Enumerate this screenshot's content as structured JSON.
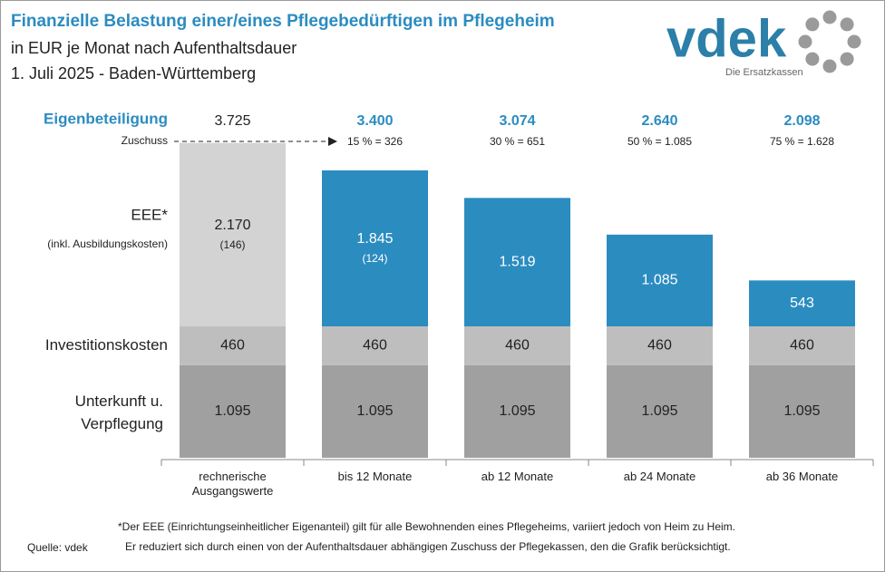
{
  "title": "Finanzielle Belastung einer/eines Pflegebedürftigen im Pflegeheim",
  "subtitle": [
    "in EUR je Monat nach Aufenthaltsdauer",
    "1. Juli 2025 - Baden-Württemberg"
  ],
  "logo": {
    "text": "vdek",
    "tagline": "Die Ersatzkassen"
  },
  "chart_data": {
    "type": "bar",
    "stacked": true,
    "categories": [
      "rechnerische Ausgangswerte",
      "bis 12 Monate",
      "ab 12 Monate",
      "ab 24 Monate",
      "ab 36 Monate"
    ],
    "series": [
      {
        "name": "Unterkunft u. Verpflegung",
        "color": "#a0a0a0",
        "values": [
          1095,
          1095,
          1095,
          1095,
          1095
        ],
        "value_labels": [
          "1.095",
          "1.095",
          "1.095",
          "1.095",
          "1.095"
        ]
      },
      {
        "name": "Investitionskosten",
        "color": "#bebebe",
        "values": [
          460,
          460,
          460,
          460,
          460
        ]
      },
      {
        "name": "EEE*",
        "color": "#2b8cc0",
        "colors": [
          "#d3d3d3",
          "#2b8cc0",
          "#2b8cc0",
          "#2b8cc0",
          "#2b8cc0"
        ],
        "values": [
          2170,
          1845,
          1519,
          1085,
          543
        ],
        "value_labels": [
          "2.170",
          "1.845",
          "1.519",
          "1.085",
          "543"
        ]
      }
    ],
    "ausbildung_labels": [
      "(146)",
      "(124)",
      null,
      null,
      null
    ],
    "totals": {
      "values": [
        3725,
        3400,
        3074,
        2640,
        2098
      ],
      "value_labels": [
        "3.725",
        "3.400",
        "3.074",
        "2.640",
        "2.098"
      ]
    },
    "zuschuss_labels": [
      null,
      "15 % = 326",
      "30 % = 651",
      "50 % = 1.085",
      "75 % = 1.628"
    ],
    "row_labels": {
      "eigenbeteiligung": "Eigenbeteiligung",
      "zuschuss": "Zuschuss",
      "eee_note": "(inkl. Ausbildungskosten)"
    },
    "ylim": [
      0,
      4000
    ],
    "footnote": [
      "*Der EEE (Einrichtungseinheitlicher Eigenanteil) gilt für alle Bewohnenden eines Pflegeheims, variiert jedoch von Heim zu Heim.",
      "Er reduziert sich durch einen von der Aufenthaltsdauer abhängigen Zuschuss der Pflegekassen, den die Grafik berücksichtigt."
    ],
    "source": "Quelle: vdek"
  }
}
